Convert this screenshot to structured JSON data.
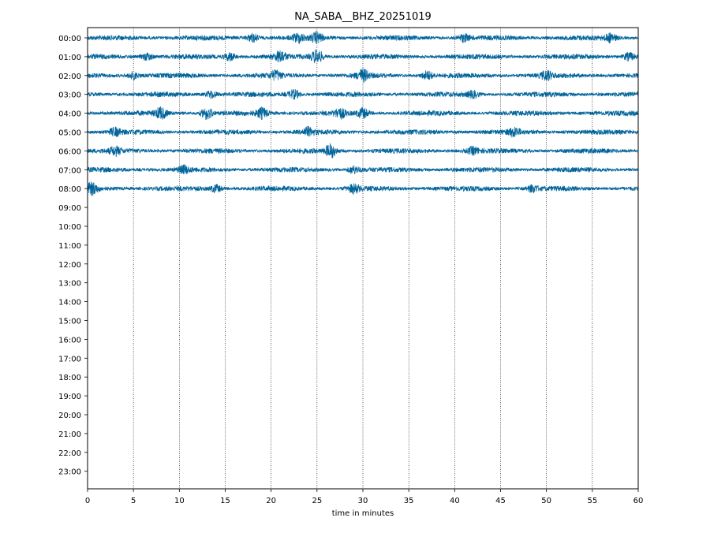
{
  "chart_data": {
    "type": "line",
    "title": "NA_SABA__BHZ_20251019",
    "xlabel": "time in minutes",
    "ylabel": "",
    "xlim": [
      0,
      60
    ],
    "x_ticks": [
      0,
      5,
      10,
      15,
      20,
      25,
      30,
      35,
      40,
      45,
      50,
      55,
      60
    ],
    "y_tick_labels": [
      "00:00",
      "01:00",
      "02:00",
      "03:00",
      "04:00",
      "05:00",
      "06:00",
      "07:00",
      "08:00",
      "09:00",
      "10:00",
      "11:00",
      "12:00",
      "13:00",
      "14:00",
      "15:00",
      "16:00",
      "17:00",
      "18:00",
      "19:00",
      "20:00",
      "21:00",
      "22:00",
      "23:00"
    ],
    "grid": "vertical dotted lines at x ticks",
    "trace_color": "#00649a",
    "series": [
      {
        "hour": "00:00",
        "events": [
          {
            "x": 18,
            "amp": 1.6
          },
          {
            "x": 23,
            "amp": 1.4
          },
          {
            "x": 25,
            "amp": 1.8
          },
          {
            "x": 41,
            "amp": 1.3
          },
          {
            "x": 57,
            "amp": 1.5
          }
        ]
      },
      {
        "hour": "01:00",
        "events": [
          {
            "x": 6.5,
            "amp": 1.3
          },
          {
            "x": 15.5,
            "amp": 1.4
          },
          {
            "x": 21,
            "amp": 1.8
          },
          {
            "x": 25,
            "amp": 2.6
          },
          {
            "x": 59,
            "amp": 1.4
          }
        ]
      },
      {
        "hour": "02:00",
        "events": [
          {
            "x": 5,
            "amp": 1.3
          },
          {
            "x": 20.5,
            "amp": 1.5
          },
          {
            "x": 30,
            "amp": 2.0
          },
          {
            "x": 37,
            "amp": 1.6
          },
          {
            "x": 50,
            "amp": 1.5
          }
        ]
      },
      {
        "hour": "03:00",
        "events": [
          {
            "x": 13.5,
            "amp": 1.4
          },
          {
            "x": 22.5,
            "amp": 1.6
          },
          {
            "x": 42,
            "amp": 1.2
          }
        ]
      },
      {
        "hour": "04:00",
        "events": [
          {
            "x": 8,
            "amp": 1.9
          },
          {
            "x": 13,
            "amp": 2.2
          },
          {
            "x": 19,
            "amp": 1.8
          },
          {
            "x": 27.5,
            "amp": 1.6
          },
          {
            "x": 30,
            "amp": 1.7
          }
        ]
      },
      {
        "hour": "05:00",
        "events": [
          {
            "x": 3,
            "amp": 1.3
          },
          {
            "x": 24,
            "amp": 1.4
          },
          {
            "x": 46.5,
            "amp": 1.4
          }
        ]
      },
      {
        "hour": "06:00",
        "events": [
          {
            "x": 3,
            "amp": 1.3
          },
          {
            "x": 26.5,
            "amp": 2.4
          },
          {
            "x": 42,
            "amp": 1.3
          }
        ]
      },
      {
        "hour": "07:00",
        "events": [
          {
            "x": 10.5,
            "amp": 1.2
          },
          {
            "x": 29,
            "amp": 1.3
          }
        ]
      },
      {
        "hour": "08:00",
        "events": [
          {
            "x": 0.5,
            "amp": 2.0
          },
          {
            "x": 14,
            "amp": 1.3
          },
          {
            "x": 29,
            "amp": 1.4
          },
          {
            "x": 48.5,
            "amp": 1.2
          }
        ]
      }
    ]
  }
}
